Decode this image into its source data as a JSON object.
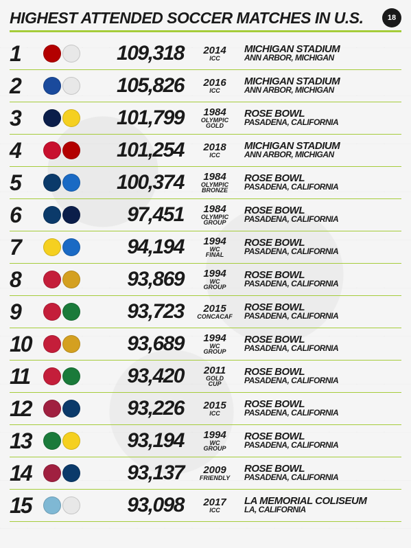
{
  "title": "HIGHEST ATTENDED SOCCER MATCHES IN U.S.",
  "logo": "18",
  "accent_color": "#a5cc3a",
  "text_color": "#1a1a1a",
  "bg_color": "#f5f5f5",
  "rows": [
    {
      "rank": "1",
      "attendance": "109,318",
      "year": "2014",
      "comp": "ICC",
      "stadium": "MICHIGAN STADIUM",
      "location": "ANN ARBOR, MICHIGAN",
      "crest1": "#b30000",
      "crest2": "#e8e8e8"
    },
    {
      "rank": "2",
      "attendance": "105,826",
      "year": "2016",
      "comp": "ICC",
      "stadium": "MICHIGAN STADIUM",
      "location": "ANN ARBOR, MICHIGAN",
      "crest1": "#1a4a9c",
      "crest2": "#e8e8e8"
    },
    {
      "rank": "3",
      "attendance": "101,799",
      "year": "1984",
      "comp": "OLYMPIC\nGOLD",
      "stadium": "ROSE BOWL",
      "location": "PASADENA, CALIFORNIA",
      "crest1": "#0b1e4a",
      "crest2": "#f5d020"
    },
    {
      "rank": "4",
      "attendance": "101,254",
      "year": "2018",
      "comp": "ICC",
      "stadium": "MICHIGAN STADIUM",
      "location": "ANN ARBOR, MICHIGAN",
      "crest1": "#c8102e",
      "crest2": "#b30000"
    },
    {
      "rank": "5",
      "attendance": "100,374",
      "year": "1984",
      "comp": "OLYMPIC\nBRONZE",
      "stadium": "ROSE BOWL",
      "location": "PASADENA, CALIFORNIA",
      "crest1": "#0b3a6a",
      "crest2": "#1a6ac4"
    },
    {
      "rank": "6",
      "attendance": "97,451",
      "year": "1984",
      "comp": "OLYMPIC\nGROUP",
      "stadium": "ROSE BOWL",
      "location": "PASADENA, CALIFORNIA",
      "crest1": "#0b3a6a",
      "crest2": "#0b1e4a"
    },
    {
      "rank": "7",
      "attendance": "94,194",
      "year": "1994",
      "comp": "WC\nFINAL",
      "stadium": "ROSE BOWL",
      "location": "PASADENA, CALIFORNIA",
      "crest1": "#f5d020",
      "crest2": "#1a6ac4"
    },
    {
      "rank": "8",
      "attendance": "93,869",
      "year": "1994",
      "comp": "WC\nGROUP",
      "stadium": "ROSE BOWL",
      "location": "PASADENA, CALIFORNIA",
      "crest1": "#c41e3a",
      "crest2": "#d4a020"
    },
    {
      "rank": "9",
      "attendance": "93,723",
      "year": "2015",
      "comp": "CONCACAF",
      "stadium": "ROSE BOWL",
      "location": "PASADENA, CALIFORNIA",
      "crest1": "#c41e3a",
      "crest2": "#1a7a3a"
    },
    {
      "rank": "10",
      "attendance": "93,689",
      "year": "1994",
      "comp": "WC\nGROUP",
      "stadium": "ROSE BOWL",
      "location": "PASADENA, CALIFORNIA",
      "crest1": "#c41e3a",
      "crest2": "#d4a020"
    },
    {
      "rank": "11",
      "attendance": "93,420",
      "year": "2011",
      "comp": "GOLD\nCUP",
      "stadium": "ROSE BOWL",
      "location": "PASADENA, CALIFORNIA",
      "crest1": "#c41e3a",
      "crest2": "#1a7a3a"
    },
    {
      "rank": "12",
      "attendance": "93,226",
      "year": "2015",
      "comp": "ICC",
      "stadium": "ROSE BOWL",
      "location": "PASADENA, CALIFORNIA",
      "crest1": "#a02040",
      "crest2": "#0b3a6a"
    },
    {
      "rank": "13",
      "attendance": "93,194",
      "year": "1994",
      "comp": "WC\nGROUP",
      "stadium": "ROSE BOWL",
      "location": "PASADENA, CALIFORNIA",
      "crest1": "#1a7a3a",
      "crest2": "#f5d020"
    },
    {
      "rank": "14",
      "attendance": "93,137",
      "year": "2009",
      "comp": "FRIENDLY",
      "stadium": "ROSE BOWL",
      "location": "PASADENA, CALIFORNIA",
      "crest1": "#a02040",
      "crest2": "#0b3a6a"
    },
    {
      "rank": "15",
      "attendance": "93,098",
      "year": "2017",
      "comp": "ICC",
      "stadium": "LA MEMORIAL COLISEUM",
      "location": "LA, CALIFORNIA",
      "crest1": "#7fb8d4",
      "crest2": "#e8e8e8"
    }
  ]
}
